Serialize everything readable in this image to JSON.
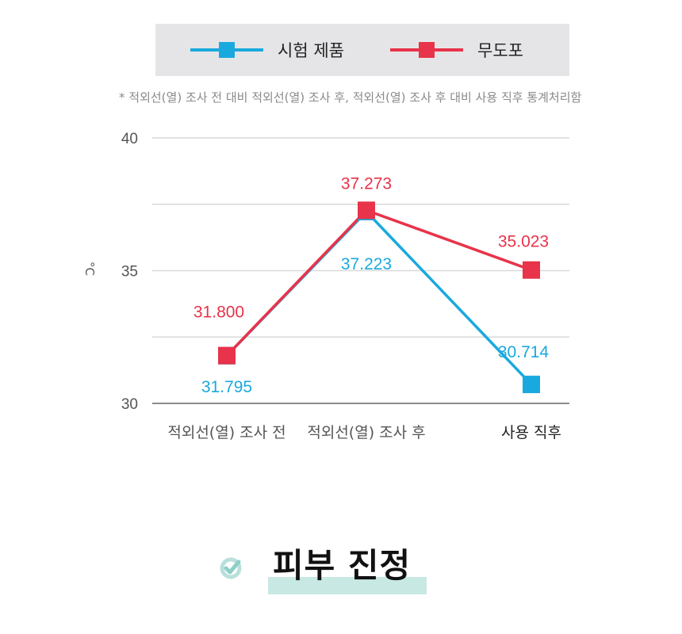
{
  "legend": {
    "items": [
      {
        "label": "시험 제품",
        "color": "#1aa9de"
      },
      {
        "label": "무도포",
        "color": "#e8334a"
      }
    ]
  },
  "note": "* 적외선(열) 조사 전 대비 적외선(열) 조사 후, 적외선(열) 조사 후 대비 사용 직후 통계처리함",
  "chart_data": {
    "type": "line",
    "categories": [
      "적외선(열) 조사 전",
      "적외선(열) 조사 후",
      "사용 직후"
    ],
    "series": [
      {
        "name": "시험 제품",
        "color": "#1aa9de",
        "values": [
          31.795,
          37.223,
          30.714
        ],
        "labels": [
          "31.795",
          "37.223",
          "30.714"
        ]
      },
      {
        "name": "무도포",
        "color": "#e8334a",
        "values": [
          31.8,
          37.273,
          35.023
        ],
        "labels": [
          "31.800",
          "37.273",
          "35.023"
        ]
      }
    ],
    "ylabel": "°C",
    "ylim": [
      30,
      40
    ],
    "yticks": [
      30,
      35,
      40
    ],
    "grid": true,
    "legend_position": "top"
  },
  "title": {
    "text": "피부 진정",
    "icon": "check-circle-icon",
    "highlight_color": "#c8e8e4"
  }
}
